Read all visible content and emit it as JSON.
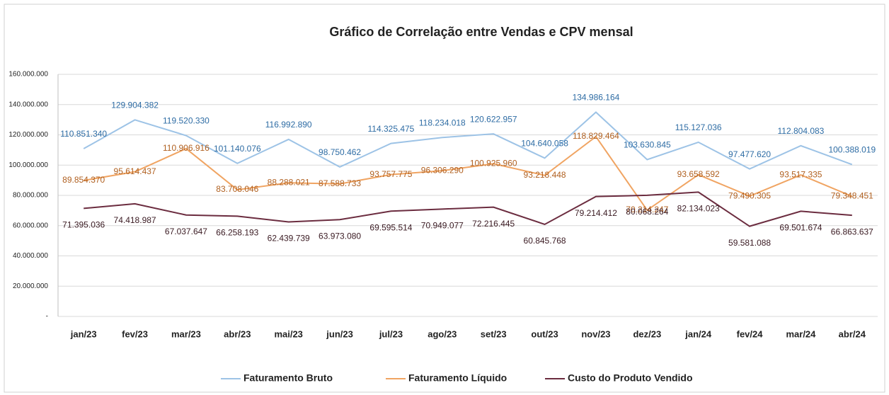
{
  "chart_data": {
    "type": "line",
    "title": "Gráfico de Correlação entre Vendas e CPV mensal",
    "categories": [
      "jan/23",
      "fev/23",
      "mar/23",
      "abr/23",
      "mai/23",
      "jun/23",
      "jul/23",
      "ago/23",
      "set/23",
      "out/23",
      "nov/23",
      "dez/23",
      "jan/24",
      "fev/24",
      "mar/24",
      "abr/24"
    ],
    "series": [
      {
        "name": "Faturamento Bruto",
        "color": "#9dc3e6",
        "values": [
          110851340,
          129904382,
          119520330,
          101140076,
          116992890,
          98750462,
          114325475,
          118234018,
          120622957,
          104640058,
          134986164,
          103630845,
          115127036,
          97477620,
          112804083,
          100388019
        ],
        "value_labels": [
          "110.851.340",
          "129.904.382",
          "119.520.330",
          "101.140.076",
          "116.992.890",
          "98.750.462",
          "114.325.475",
          "118.234.018",
          "120.622.957",
          "104.640.058",
          "134.986.164",
          "103.630.845",
          "115.127.036",
          "97.477.620",
          "112.804.083",
          "100.388.019"
        ]
      },
      {
        "name": "Faturamento Líquido",
        "color": "#f0a462",
        "values": [
          89854370,
          95614437,
          110906916,
          83708046,
          88288021,
          87588733,
          93757775,
          96306290,
          100925960,
          93218448,
          118829464,
          70214247,
          93658592,
          79490305,
          93517335,
          79348451
        ],
        "value_labels": [
          "89.854.370",
          "95.614.437",
          "110.906.916",
          "83.708.046",
          "88.288.021",
          "87.588.733",
          "93.757.775",
          "96.306.290",
          "100.925.960",
          "93.218.448",
          "118.829.464",
          "70.214.247",
          "93.658.592",
          "79.490.305",
          "93.517.335",
          "79.348.451"
        ]
      },
      {
        "name": "Custo do Produto Vendido",
        "color": "#6b2c3f",
        "values": [
          71395036,
          74418987,
          67037647,
          66258193,
          62439739,
          63973080,
          69595514,
          70949077,
          72216445,
          60845768,
          79214412,
          80068264,
          82134023,
          59581088,
          69501674,
          66863637
        ],
        "value_labels": [
          "71.395.036",
          "74.418.987",
          "67.037.647",
          "66.258.193",
          "62.439.739",
          "63.973.080",
          "69.595.514",
          "70.949.077",
          "72.216.445",
          "60.845.768",
          "79.214.412",
          "80.068.264",
          "82.134.023",
          "59.581.088",
          "69.501.674",
          "66.863.637"
        ]
      }
    ],
    "ylim": [
      0,
      160000000
    ],
    "yticks": [
      {
        "value": 0,
        "label": "-"
      },
      {
        "value": 20000000,
        "label": "20.000.000"
      },
      {
        "value": 40000000,
        "label": "40.000.000"
      },
      {
        "value": 60000000,
        "label": "60.000.000"
      },
      {
        "value": 80000000,
        "label": "80.000.000"
      },
      {
        "value": 100000000,
        "label": "100.000.000"
      },
      {
        "value": 120000000,
        "label": "120.000.000"
      },
      {
        "value": 140000000,
        "label": "140.000.000"
      },
      {
        "value": 160000000,
        "label": "160.000.000"
      }
    ],
    "grid": true
  }
}
